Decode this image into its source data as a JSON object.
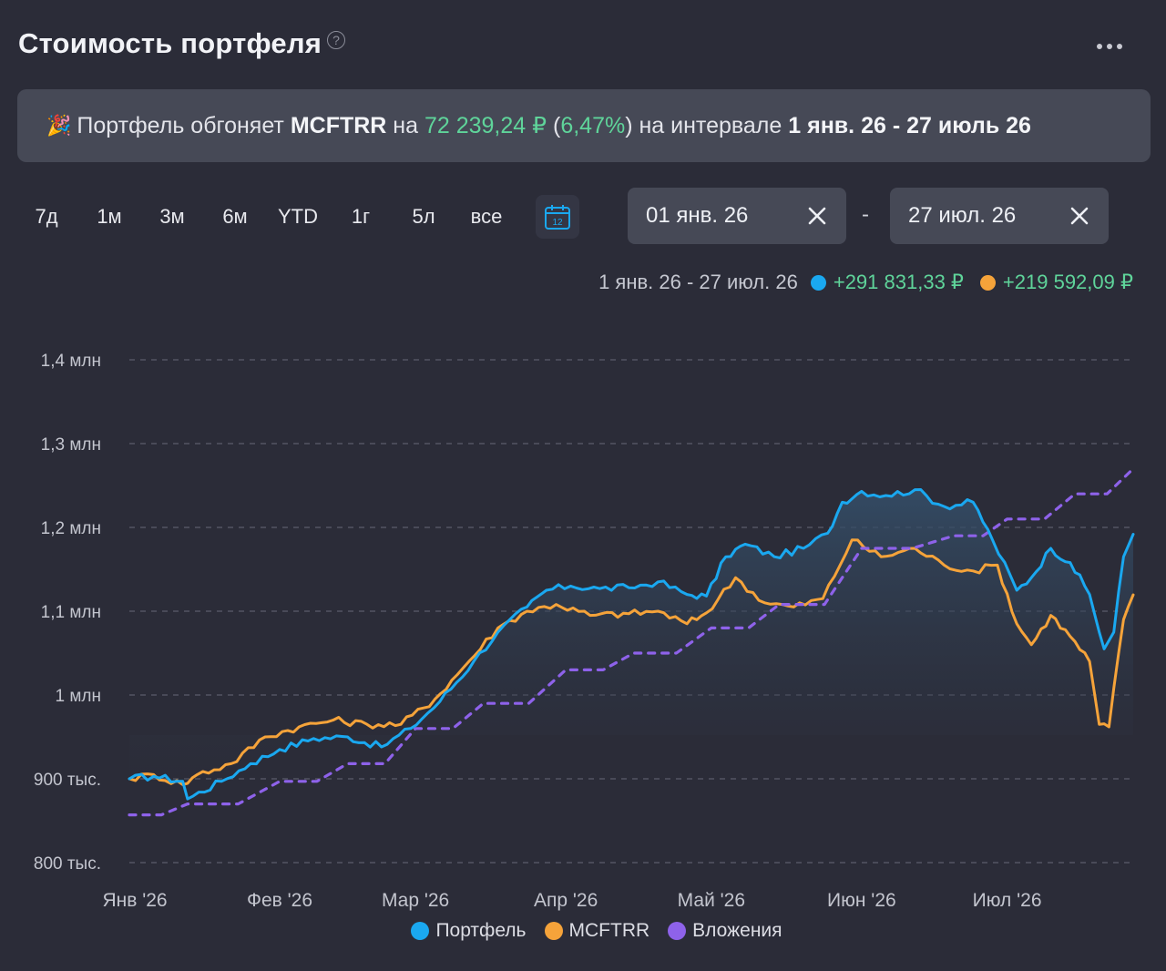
{
  "header": {
    "title": "Стоимость портфеля",
    "help_glyph": "?",
    "more_icon": "more-horizontal-icon"
  },
  "banner": {
    "emoji": "🎉",
    "text1": "Портфель обгоняет",
    "benchmark": "MCFTRR",
    "text2": "на",
    "amount": "72 239,24 ₽",
    "paren_open": "(",
    "percent": "6,47%",
    "paren_close": ")",
    "text3": "на интервале",
    "interval": "1 янв. 26 - 27 июль 26"
  },
  "period_tabs": [
    "7д",
    "1м",
    "3м",
    "6м",
    "YTD",
    "1г",
    "5л",
    "все"
  ],
  "calendar": {
    "icon": "calendar-icon",
    "day": "12"
  },
  "date_from": {
    "value": "01 янв. 26",
    "clear_icon": "close-icon"
  },
  "date_separator": "-",
  "date_to": {
    "value": "27 июл. 26",
    "clear_icon": "close-icon"
  },
  "summary": {
    "range": "1 янв. 26 - 27 июл. 26",
    "portfolio_change": "+291 831,33 ₽",
    "benchmark_change": "+219 592,09 ₽"
  },
  "colors": {
    "portfolio": "#1aa8f0",
    "benchmark": "#f5a33a",
    "invested": "#8e62ea",
    "positive": "#5fd49a",
    "background": "#2b2c38",
    "grid": "#5b5d6b"
  },
  "legend": [
    {
      "label": "Портфель",
      "color": "#1aa8f0"
    },
    {
      "label": "MCFTRR",
      "color": "#f5a33a"
    },
    {
      "label": "Вложения",
      "color": "#8e62ea"
    }
  ],
  "chart_data": {
    "type": "line",
    "x_range": [
      "2026-01-01",
      "2026-07-27"
    ],
    "y_ticks": [
      {
        "value": 800000,
        "label": "800 тыс."
      },
      {
        "value": 900000,
        "label": "900 тыс."
      },
      {
        "value": 1000000,
        "label": "1 млн"
      },
      {
        "value": 1100000,
        "label": "1,1 млн"
      },
      {
        "value": 1200000,
        "label": "1,2 млн"
      },
      {
        "value": 1300000,
        "label": "1,3 млн"
      },
      {
        "value": 1400000,
        "label": "1,4 млн"
      }
    ],
    "x_ticks": [
      {
        "date": "2026-01-01",
        "label": "Янв '26"
      },
      {
        "date": "2026-02-01",
        "label": "Фев '26"
      },
      {
        "date": "2026-03-01",
        "label": "Мар '26"
      },
      {
        "date": "2026-04-01",
        "label": "Апр '26"
      },
      {
        "date": "2026-05-01",
        "label": "Май '26"
      },
      {
        "date": "2026-06-01",
        "label": "Июн '26"
      },
      {
        "date": "2026-07-01",
        "label": "Июл '26"
      }
    ],
    "grid": true,
    "series": [
      {
        "name": "Портфель",
        "color": "#1aa8f0",
        "style": "solid",
        "area_fill": true,
        "points": [
          [
            "2026-01-01",
            900000
          ],
          [
            "2026-01-06",
            903000
          ],
          [
            "2026-01-12",
            897000
          ],
          [
            "2026-01-13",
            876000
          ],
          [
            "2026-01-20",
            897000
          ],
          [
            "2026-01-26",
            918000
          ],
          [
            "2026-02-01",
            935000
          ],
          [
            "2026-02-08",
            948000
          ],
          [
            "2026-02-15",
            950000
          ],
          [
            "2026-02-22",
            938000
          ],
          [
            "2026-02-28",
            960000
          ],
          [
            "2026-03-06",
            992000
          ],
          [
            "2026-03-13",
            1040000
          ],
          [
            "2026-03-18",
            1075000
          ],
          [
            "2026-03-24",
            1105000
          ],
          [
            "2026-03-28",
            1125000
          ],
          [
            "2026-04-02",
            1130000
          ],
          [
            "2026-04-08",
            1127000
          ],
          [
            "2026-04-14",
            1128000
          ],
          [
            "2026-04-20",
            1135000
          ],
          [
            "2026-04-26",
            1120000
          ],
          [
            "2026-04-30",
            1118000
          ],
          [
            "2026-05-04",
            1165000
          ],
          [
            "2026-05-08",
            1180000
          ],
          [
            "2026-05-14",
            1165000
          ],
          [
            "2026-05-20",
            1175000
          ],
          [
            "2026-05-25",
            1193000
          ],
          [
            "2026-05-28",
            1230000
          ],
          [
            "2026-06-01",
            1243000
          ],
          [
            "2026-06-06",
            1238000
          ],
          [
            "2026-06-12",
            1245000
          ],
          [
            "2026-06-18",
            1225000
          ],
          [
            "2026-06-24",
            1230000
          ],
          [
            "2026-06-28",
            1185000
          ],
          [
            "2026-07-03",
            1125000
          ],
          [
            "2026-07-06",
            1140000
          ],
          [
            "2026-07-10",
            1175000
          ],
          [
            "2026-07-14",
            1158000
          ],
          [
            "2026-07-18",
            1120000
          ],
          [
            "2026-07-21",
            1055000
          ],
          [
            "2026-07-23",
            1075000
          ],
          [
            "2026-07-25",
            1165000
          ],
          [
            "2026-07-27",
            1191831
          ]
        ]
      },
      {
        "name": "MCFTRR",
        "color": "#f5a33a",
        "style": "solid",
        "area_fill": false,
        "points": [
          [
            "2026-01-01",
            900000
          ],
          [
            "2026-01-06",
            905000
          ],
          [
            "2026-01-12",
            893000
          ],
          [
            "2026-01-15",
            905000
          ],
          [
            "2026-01-22",
            918000
          ],
          [
            "2026-01-29",
            950000
          ],
          [
            "2026-02-05",
            962000
          ],
          [
            "2026-02-12",
            970000
          ],
          [
            "2026-02-19",
            965000
          ],
          [
            "2026-02-26",
            965000
          ],
          [
            "2026-03-05",
            995000
          ],
          [
            "2026-03-12",
            1040000
          ],
          [
            "2026-03-18",
            1080000
          ],
          [
            "2026-03-24",
            1100000
          ],
          [
            "2026-03-30",
            1108000
          ],
          [
            "2026-04-06",
            1095000
          ],
          [
            "2026-04-14",
            1097000
          ],
          [
            "2026-04-20",
            1100000
          ],
          [
            "2026-04-26",
            1085000
          ],
          [
            "2026-04-30",
            1098000
          ],
          [
            "2026-05-06",
            1140000
          ],
          [
            "2026-05-12",
            1110000
          ],
          [
            "2026-05-18",
            1105000
          ],
          [
            "2026-05-24",
            1115000
          ],
          [
            "2026-05-30",
            1185000
          ],
          [
            "2026-06-05",
            1165000
          ],
          [
            "2026-06-12",
            1175000
          ],
          [
            "2026-06-18",
            1155000
          ],
          [
            "2026-06-24",
            1148000
          ],
          [
            "2026-06-29",
            1155000
          ],
          [
            "2026-07-03",
            1085000
          ],
          [
            "2026-07-06",
            1060000
          ],
          [
            "2026-07-10",
            1095000
          ],
          [
            "2026-07-14",
            1070000
          ],
          [
            "2026-07-18",
            1040000
          ],
          [
            "2026-07-20",
            965000
          ],
          [
            "2026-07-22",
            962000
          ],
          [
            "2026-07-25",
            1090000
          ],
          [
            "2026-07-27",
            1119592
          ]
        ]
      },
      {
        "name": "Вложения",
        "color": "#8e62ea",
        "style": "dashed",
        "area_fill": false,
        "points": [
          [
            "2026-01-01",
            857000
          ],
          [
            "2026-01-13",
            870000
          ],
          [
            "2026-02-01",
            897000
          ],
          [
            "2026-02-15",
            918000
          ],
          [
            "2026-03-01",
            960000
          ],
          [
            "2026-03-15",
            990000
          ],
          [
            "2026-04-01",
            1030000
          ],
          [
            "2026-04-15",
            1050000
          ],
          [
            "2026-05-01",
            1080000
          ],
          [
            "2026-05-15",
            1108000
          ],
          [
            "2026-06-01",
            1175000
          ],
          [
            "2026-06-20",
            1190000
          ],
          [
            "2026-07-01",
            1210000
          ],
          [
            "2026-07-15",
            1240000
          ],
          [
            "2026-07-27",
            1270000
          ]
        ]
      }
    ]
  }
}
